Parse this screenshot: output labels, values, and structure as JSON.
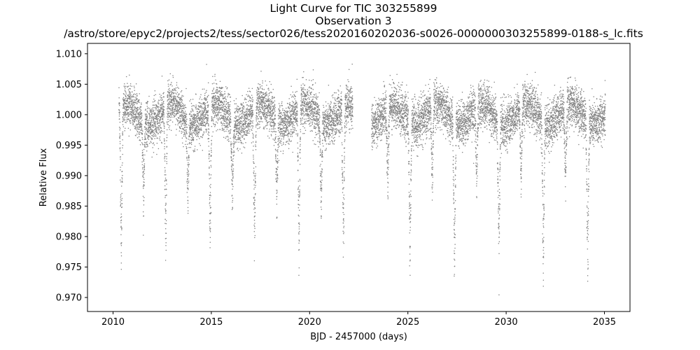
{
  "chart_data": {
    "type": "scatter",
    "title": "Light Curve for TIC 303255899",
    "subtitle": "Observation 3",
    "filename": "/astro/store/epyc2/projects2/tess/sector026/tess2020160202036-s0026-0000000303255899-0188-s_lc.fits",
    "xlabel": "BJD - 2457000 (days)",
    "ylabel": "Relative Flux",
    "xlim": [
      2008.7,
      2036.3
    ],
    "ylim": [
      0.9677,
      1.0117
    ],
    "x_ticks": [
      2010,
      2015,
      2020,
      2025,
      2030,
      2035
    ],
    "y_ticks": [
      0.97,
      0.975,
      0.98,
      0.985,
      0.99,
      0.995,
      1.0,
      1.005,
      1.01
    ],
    "grid": false,
    "legend": "none",
    "series": [
      {
        "marker_color": "#808080",
        "x_start": 2010.3,
        "x_end": 2035.05,
        "gap": [
          2022.2,
          2023.15
        ],
        "baseline": 1.0,
        "variability_amplitude": 0.0017,
        "scatter": 0.0018,
        "eclipse_times": [
          2010.42,
          2011.55,
          2012.68,
          2013.81,
          2014.94,
          2016.07,
          2017.2,
          2018.33,
          2019.46,
          2020.59,
          2021.72,
          2023.98,
          2025.11,
          2026.24,
          2027.37,
          2028.5,
          2029.63,
          2030.76,
          2031.89,
          2033.02,
          2034.15
        ],
        "primary_eclipse_depth": 0.972,
        "secondary_eclipse_depth": 0.985
      }
    ]
  }
}
